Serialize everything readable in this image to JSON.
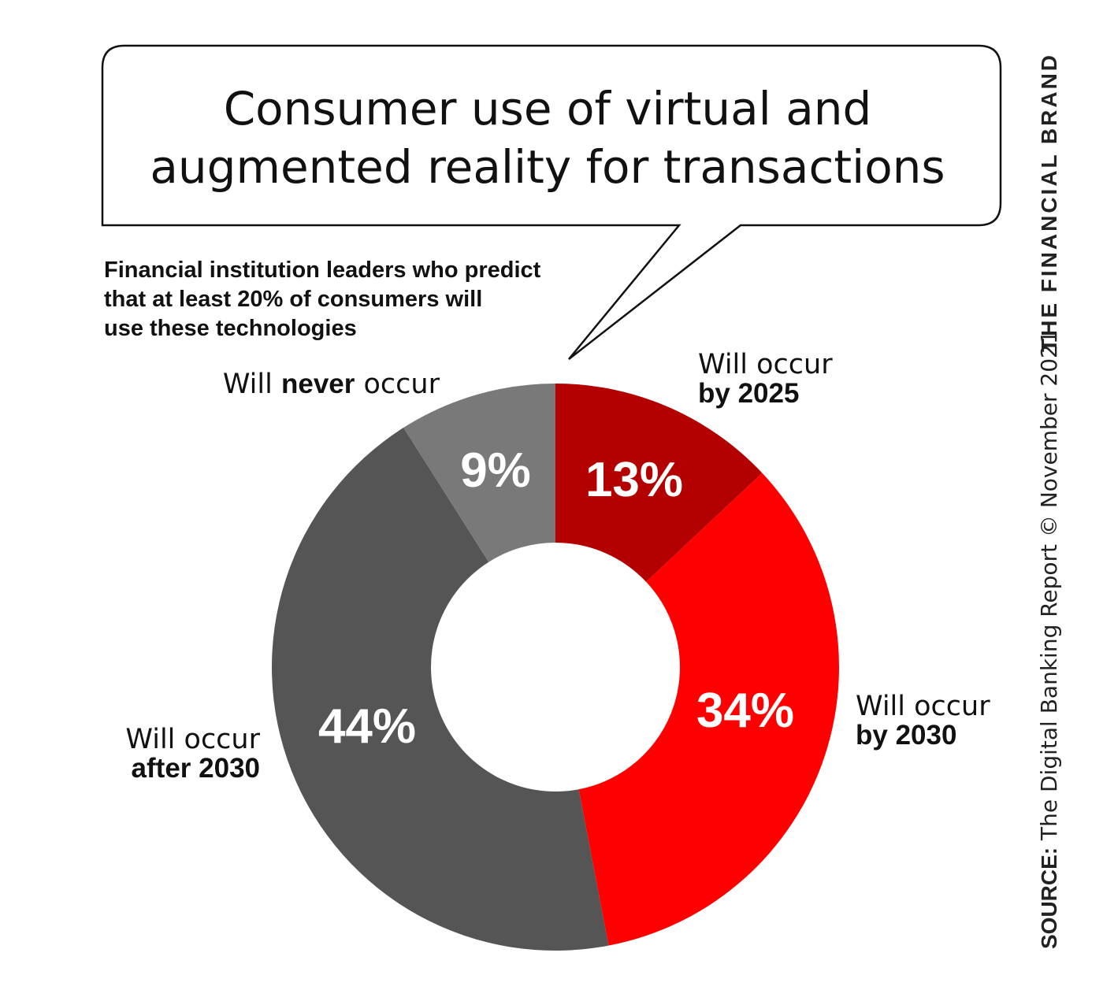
{
  "title_lines": [
    "Consumer use of virtual and",
    "augmented reality for transactions"
  ],
  "subtitle_lines": [
    "Financial institution leaders who predict",
    "that at least 20% of consumers will",
    "use these technologies"
  ],
  "chart_data": {
    "type": "pie",
    "donut": true,
    "slices": [
      {
        "label_prefix": "Will occur",
        "label_bold": "by 2025",
        "value": 13,
        "display": "13%",
        "color": "#b30000"
      },
      {
        "label_prefix": "Will occur",
        "label_bold": "by 2030",
        "value": 34,
        "display": "34%",
        "color": "#ff0000"
      },
      {
        "label_prefix": "Will occur",
        "label_bold": "after 2030",
        "value": 44,
        "display": "44%",
        "color": "#555555"
      },
      {
        "label_pre": "Will ",
        "label_bold": "never",
        "label_post": " occur",
        "value": 9,
        "display": "9%",
        "color": "#797979"
      }
    ]
  },
  "source": {
    "label": "SOURCE:",
    "text": " The Digital Banking Report © November 2021",
    "brand": "THE FINANCIAL BRAND"
  }
}
